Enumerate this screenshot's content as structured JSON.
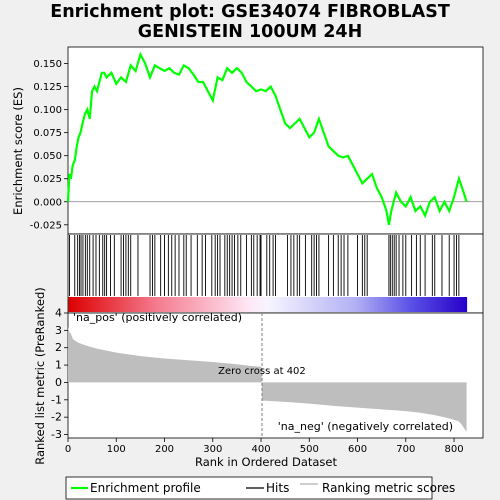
{
  "title_line1": "Enrichment plot: GSE34074 FIBROBLAST",
  "title_line2": "GENISTEIN 100UM 24H",
  "chart_data": {
    "type": "line",
    "panels": [
      {
        "name": "enrichment",
        "ylabel": "Enrichment score (ES)",
        "ylim": [
          -0.035,
          0.168
        ],
        "yticks": [
          -0.025,
          0.0,
          0.025,
          0.05,
          0.075,
          0.1,
          0.125,
          0.15
        ],
        "ytick_labels": [
          "-0.025",
          "0.000",
          "0.025",
          "0.050",
          "0.075",
          "0.100",
          "0.125",
          "0.150"
        ],
        "series_label": "Enrichment profile",
        "x": [
          0,
          3,
          6,
          10,
          14,
          18,
          22,
          26,
          30,
          35,
          40,
          45,
          50,
          55,
          60,
          65,
          70,
          75,
          80,
          90,
          100,
          110,
          120,
          130,
          140,
          150,
          160,
          170,
          180,
          190,
          200,
          210,
          220,
          230,
          240,
          250,
          260,
          270,
          280,
          290,
          300,
          310,
          320,
          330,
          340,
          350,
          360,
          370,
          380,
          390,
          400,
          410,
          420,
          430,
          440,
          450,
          460,
          470,
          480,
          490,
          500,
          510,
          520,
          530,
          540,
          550,
          560,
          570,
          580,
          590,
          600,
          610,
          620,
          630,
          640,
          650,
          660,
          665,
          670,
          680,
          690,
          700,
          710,
          720,
          730,
          740,
          750,
          760,
          770,
          780,
          790,
          800,
          810,
          820,
          826
        ],
        "y": [
          0.0,
          0.03,
          0.025,
          0.04,
          0.045,
          0.06,
          0.07,
          0.075,
          0.085,
          0.095,
          0.1,
          0.09,
          0.12,
          0.125,
          0.12,
          0.13,
          0.14,
          0.14,
          0.135,
          0.14,
          0.128,
          0.135,
          0.13,
          0.148,
          0.142,
          0.16,
          0.15,
          0.135,
          0.148,
          0.145,
          0.142,
          0.145,
          0.14,
          0.138,
          0.148,
          0.145,
          0.138,
          0.13,
          0.13,
          0.12,
          0.11,
          0.135,
          0.132,
          0.145,
          0.14,
          0.145,
          0.14,
          0.13,
          0.125,
          0.12,
          0.122,
          0.12,
          0.125,
          0.115,
          0.1,
          0.085,
          0.08,
          0.085,
          0.09,
          0.08,
          0.07,
          0.075,
          0.09,
          0.075,
          0.06,
          0.055,
          0.05,
          0.048,
          0.05,
          0.04,
          0.03,
          0.02,
          0.025,
          0.03,
          0.015,
          0.005,
          -0.01,
          -0.025,
          -0.01,
          0.01,
          0.0,
          -0.005,
          0.005,
          -0.01,
          -0.005,
          -0.015,
          0.0,
          0.005,
          -0.01,
          0.0,
          -0.01,
          0.005,
          0.025,
          0.01,
          0.0
        ]
      },
      {
        "name": "hits",
        "series_label": "Hits",
        "hit_ranks": [
          3,
          14,
          20,
          24,
          27,
          31,
          36,
          40,
          45,
          52,
          58,
          65,
          72,
          76,
          80,
          88,
          96,
          110,
          115,
          120,
          125,
          130,
          145,
          170,
          175,
          180,
          192,
          200,
          208,
          215,
          222,
          230,
          240,
          245,
          255,
          268,
          278,
          285,
          298,
          305,
          310,
          315,
          325,
          330,
          335,
          340,
          345,
          352,
          358,
          370,
          380,
          385,
          392,
          398,
          400,
          412,
          418,
          425,
          430,
          455,
          462,
          468,
          475,
          480,
          492,
          505,
          510,
          515,
          520,
          540,
          550,
          560,
          566,
          572,
          580,
          600,
          610,
          615,
          620,
          665,
          668,
          672,
          676,
          680,
          686,
          694,
          700,
          712,
          722,
          730,
          740,
          755,
          760,
          775,
          790,
          800,
          805,
          810
        ]
      },
      {
        "name": "ranking",
        "ylabel": "Ranked list metric (PreRanked)",
        "xlabel": "Rank in Ordered Dataset",
        "xlim": [
          0,
          860
        ],
        "xticks": [
          0,
          100,
          200,
          300,
          400,
          500,
          600,
          700,
          800
        ],
        "xtick_labels": [
          "0",
          "100",
          "200",
          "300",
          "400",
          "500",
          "600",
          "700",
          "800"
        ],
        "ylim": [
          -3.2,
          4.0
        ],
        "yticks": [
          -3,
          -2,
          -1,
          0,
          1,
          2,
          3,
          4
        ],
        "ytick_labels": [
          "-3",
          "-2",
          "-1",
          "0",
          "1",
          "2",
          "3",
          "4"
        ],
        "series_label": "Ranking metric scores",
        "x": [
          0,
          3,
          6,
          10,
          20,
          40,
          60,
          100,
          150,
          200,
          250,
          300,
          350,
          380,
          401,
          402,
          410,
          450,
          500,
          550,
          600,
          650,
          700,
          730,
          760,
          780,
          800,
          810,
          815,
          820,
          826
        ],
        "y": [
          3.2,
          2.9,
          2.8,
          2.5,
          2.3,
          2.1,
          1.95,
          1.72,
          1.52,
          1.38,
          1.28,
          1.18,
          1.05,
          0.95,
          0.9,
          -1.05,
          -1.06,
          -1.12,
          -1.22,
          -1.35,
          -1.45,
          -1.55,
          -1.65,
          -1.75,
          -1.88,
          -2.0,
          -2.15,
          -2.25,
          -2.4,
          -2.6,
          -2.85
        ],
        "zero_cross_text": "Zero cross at 402",
        "pos_label": "'na_pos' (positively correlated)",
        "neg_label": "'na_neg' (negatively correlated)"
      }
    ],
    "legend": [
      "Enrichment profile",
      "Hits",
      "Ranking metric scores"
    ],
    "legend_position": "bottom",
    "colors": {
      "es": "#00ff00",
      "hits": "#000000",
      "metric": "#bebebe",
      "pos_text": "#ff0000",
      "neg_text": "#0000ff"
    }
  }
}
